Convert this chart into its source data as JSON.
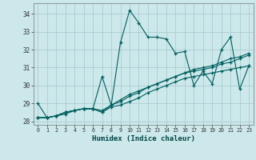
{
  "xlabel": "Humidex (Indice chaleur)",
  "background_color": "#cce8ea",
  "grid_color": "#aacdd0",
  "line_color": "#005f5f",
  "xlim": [
    -0.5,
    23.5
  ],
  "ylim": [
    27.8,
    34.6
  ],
  "yticks": [
    28,
    29,
    30,
    31,
    32,
    33,
    34
  ],
  "xticks": [
    0,
    1,
    2,
    3,
    4,
    5,
    6,
    7,
    8,
    9,
    10,
    11,
    12,
    13,
    14,
    15,
    16,
    17,
    18,
    19,
    20,
    21,
    22,
    23
  ],
  "series": [
    [
      29.0,
      28.2,
      28.3,
      28.4,
      28.6,
      28.7,
      28.7,
      30.5,
      28.9,
      32.4,
      34.2,
      33.5,
      32.7,
      32.7,
      32.6,
      31.8,
      31.9,
      30.0,
      30.8,
      30.1,
      32.0,
      32.7,
      29.8,
      31.1
    ],
    [
      28.2,
      28.2,
      28.3,
      28.5,
      28.6,
      28.7,
      28.7,
      28.6,
      28.9,
      29.2,
      29.5,
      29.7,
      29.9,
      30.1,
      30.3,
      30.5,
      30.7,
      30.8,
      30.9,
      31.0,
      31.2,
      31.3,
      31.5,
      31.7
    ],
    [
      28.2,
      28.2,
      28.3,
      28.5,
      28.6,
      28.7,
      28.7,
      28.5,
      28.8,
      28.9,
      29.1,
      29.3,
      29.6,
      29.8,
      30.0,
      30.2,
      30.4,
      30.5,
      30.6,
      30.7,
      30.8,
      30.9,
      31.0,
      31.1
    ],
    [
      28.2,
      28.2,
      28.3,
      28.5,
      28.6,
      28.7,
      28.7,
      28.5,
      28.9,
      29.1,
      29.4,
      29.6,
      29.9,
      30.1,
      30.3,
      30.5,
      30.7,
      30.9,
      31.0,
      31.1,
      31.3,
      31.5,
      31.6,
      31.8
    ]
  ]
}
